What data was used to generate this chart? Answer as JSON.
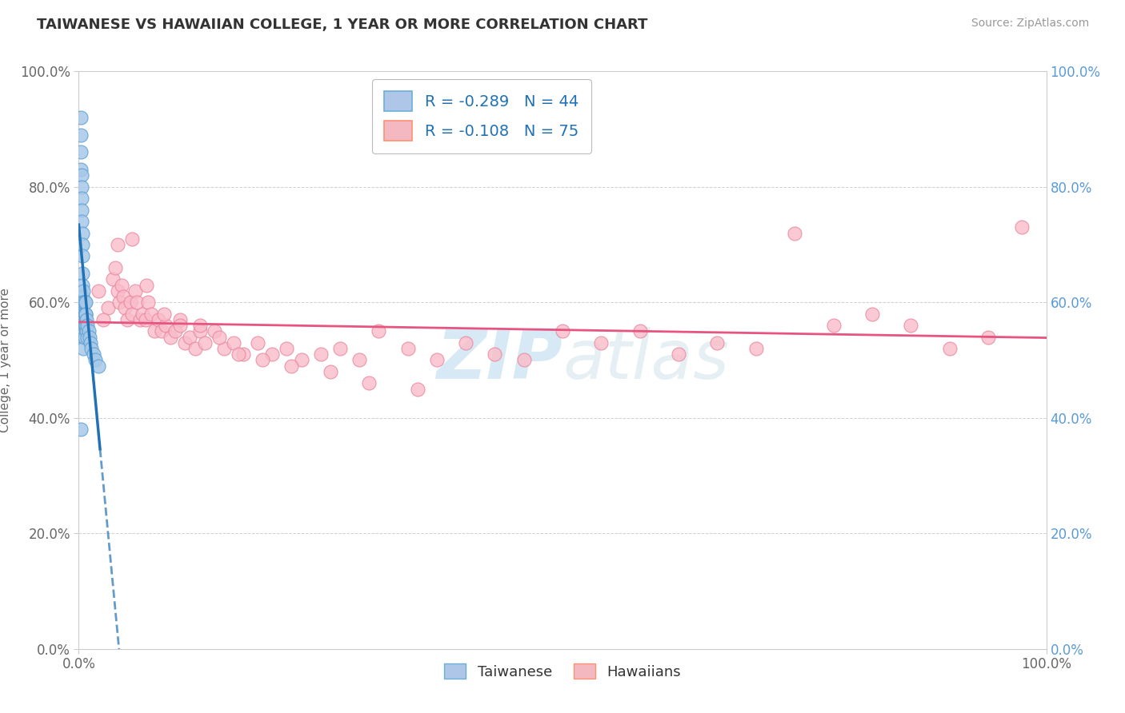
{
  "title": "TAIWANESE VS HAWAIIAN COLLEGE, 1 YEAR OR MORE CORRELATION CHART",
  "source_text": "Source: ZipAtlas.com",
  "ylabel": "College, 1 year or more",
  "xlim": [
    0.0,
    1.0
  ],
  "ylim": [
    0.0,
    1.0
  ],
  "watermark": "ZIPatlas",
  "legend_r_n": [
    {
      "r": "-0.289",
      "n": "44",
      "face": "#aec6e8",
      "edge": "#6baed6"
    },
    {
      "r": "-0.108",
      "n": "75",
      "face": "#f4b8c1",
      "edge": "#fc9272"
    }
  ],
  "legend_labels": [
    "Taiwanese",
    "Hawaiians"
  ],
  "tw_x": [
    0.002,
    0.002,
    0.002,
    0.002,
    0.003,
    0.003,
    0.003,
    0.003,
    0.003,
    0.004,
    0.004,
    0.004,
    0.004,
    0.004,
    0.004,
    0.004,
    0.005,
    0.005,
    0.005,
    0.005,
    0.005,
    0.005,
    0.005,
    0.005,
    0.006,
    0.006,
    0.006,
    0.006,
    0.007,
    0.007,
    0.007,
    0.007,
    0.008,
    0.008,
    0.009,
    0.009,
    0.01,
    0.011,
    0.012,
    0.013,
    0.015,
    0.017,
    0.02,
    0.002
  ],
  "tw_y": [
    0.92,
    0.89,
    0.86,
    0.83,
    0.82,
    0.8,
    0.78,
    0.76,
    0.74,
    0.72,
    0.7,
    0.68,
    0.65,
    0.63,
    0.61,
    0.59,
    0.62,
    0.6,
    0.58,
    0.6,
    0.58,
    0.56,
    0.54,
    0.52,
    0.6,
    0.58,
    0.56,
    0.54,
    0.58,
    0.56,
    0.6,
    0.58,
    0.57,
    0.55,
    0.56,
    0.54,
    0.55,
    0.54,
    0.53,
    0.52,
    0.51,
    0.5,
    0.49,
    0.38
  ],
  "hw_x": [
    0.02,
    0.03,
    0.035,
    0.038,
    0.04,
    0.042,
    0.044,
    0.046,
    0.048,
    0.05,
    0.053,
    0.055,
    0.058,
    0.06,
    0.063,
    0.066,
    0.069,
    0.072,
    0.075,
    0.078,
    0.082,
    0.086,
    0.09,
    0.095,
    0.1,
    0.105,
    0.11,
    0.115,
    0.12,
    0.125,
    0.13,
    0.14,
    0.15,
    0.16,
    0.17,
    0.185,
    0.2,
    0.215,
    0.23,
    0.25,
    0.27,
    0.29,
    0.31,
    0.34,
    0.37,
    0.4,
    0.43,
    0.46,
    0.5,
    0.54,
    0.58,
    0.62,
    0.66,
    0.7,
    0.74,
    0.78,
    0.82,
    0.86,
    0.9,
    0.94,
    0.975,
    0.025,
    0.04,
    0.055,
    0.07,
    0.088,
    0.105,
    0.125,
    0.145,
    0.165,
    0.19,
    0.22,
    0.26,
    0.3,
    0.35
  ],
  "hw_y": [
    0.62,
    0.59,
    0.64,
    0.66,
    0.62,
    0.6,
    0.63,
    0.61,
    0.59,
    0.57,
    0.6,
    0.58,
    0.62,
    0.6,
    0.57,
    0.58,
    0.57,
    0.6,
    0.58,
    0.55,
    0.57,
    0.55,
    0.56,
    0.54,
    0.55,
    0.57,
    0.53,
    0.54,
    0.52,
    0.55,
    0.53,
    0.55,
    0.52,
    0.53,
    0.51,
    0.53,
    0.51,
    0.52,
    0.5,
    0.51,
    0.52,
    0.5,
    0.55,
    0.52,
    0.5,
    0.53,
    0.51,
    0.5,
    0.55,
    0.53,
    0.55,
    0.51,
    0.53,
    0.52,
    0.72,
    0.56,
    0.58,
    0.56,
    0.52,
    0.54,
    0.73,
    0.57,
    0.7,
    0.71,
    0.63,
    0.58,
    0.56,
    0.56,
    0.54,
    0.51,
    0.5,
    0.49,
    0.48,
    0.46,
    0.45
  ],
  "tw_line_color": "#2171b5",
  "hw_line_color": "#e75480",
  "bg_color": "#ffffff",
  "grid_color": "#d0d0d0",
  "title_color": "#333333",
  "source_color": "#999999",
  "label_color": "#666666",
  "right_tick_color": "#5b9bd5"
}
